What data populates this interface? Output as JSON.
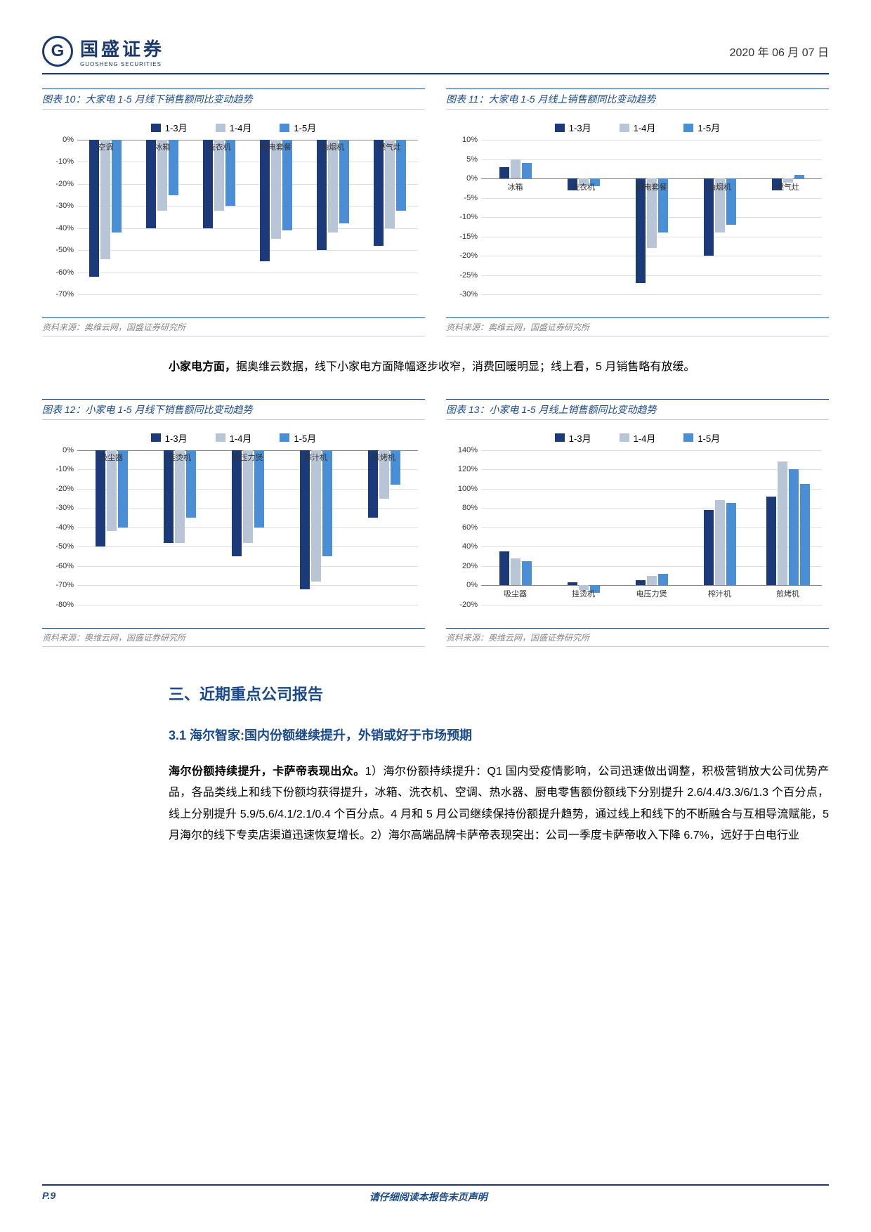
{
  "header": {
    "company_cn": "国盛证券",
    "company_en": "GUOSHENG SECURITIES",
    "date": "2020 年 06 月 07 日"
  },
  "colors": {
    "c1": "#1a3a7a",
    "c2": "#b8c5d6",
    "c3": "#4a8fd6",
    "border": "#1a4a8a",
    "grid": "#dddddd"
  },
  "legend_labels": [
    "1-3月",
    "1-4月",
    "1-5月"
  ],
  "chart10": {
    "title": "图表 10：大家电 1-5 月线下销售额同比变动趋势",
    "source": "资料来源：奥维云网，国盛证券研究所",
    "ymin": -70,
    "ymax": 0,
    "ystep": 10,
    "categories": [
      "空调",
      "冰箱",
      "洗衣机",
      "厨电套餐",
      "油烟机",
      "燃气灶"
    ],
    "series": [
      [
        -62,
        -40,
        -40,
        -55,
        -50,
        -48
      ],
      [
        -54,
        -32,
        -32,
        -45,
        -42,
        -40
      ],
      [
        -42,
        -25,
        -30,
        -41,
        -38,
        -32
      ]
    ]
  },
  "chart11": {
    "title": "图表 11：大家电 1-5 月线上销售额同比变动趋势",
    "source": "资料来源：奥维云网，国盛证券研究所",
    "ymin": -30,
    "ymax": 10,
    "ystep": 5,
    "categories": [
      "冰箱",
      "洗衣机",
      "厨电套餐",
      "油烟机",
      "燃气灶"
    ],
    "series": [
      [
        3,
        -3,
        -27,
        -20,
        -3
      ],
      [
        5,
        -2,
        -18,
        -14,
        -1
      ],
      [
        4,
        -2,
        -14,
        -12,
        1
      ]
    ]
  },
  "chart12": {
    "title": "图表 12：小家电 1-5 月线下销售额同比变动趋势",
    "source": "资料来源：奥维云网，国盛证券研究所",
    "ymin": -80,
    "ymax": 0,
    "ystep": 10,
    "categories": [
      "吸尘器",
      "挂烫机",
      "电压力煲",
      "榨汁机",
      "煎烤机"
    ],
    "series": [
      [
        -50,
        -48,
        -55,
        -72,
        -35
      ],
      [
        -42,
        -48,
        -48,
        -68,
        -25
      ],
      [
        -40,
        -35,
        -40,
        -55,
        -18
      ]
    ]
  },
  "chart13": {
    "title": "图表 13：小家电 1-5 月线上销售额同比变动趋势",
    "source": "资料来源：奥维云网，国盛证券研究所",
    "ymin": -20,
    "ymax": 140,
    "ystep": 20,
    "categories": [
      "吸尘器",
      "挂烫机",
      "电压力煲",
      "榨汁机",
      "煎烤机"
    ],
    "series": [
      [
        35,
        3,
        5,
        78,
        92
      ],
      [
        28,
        -5,
        10,
        88,
        128
      ],
      [
        25,
        -8,
        12,
        85,
        120
      ]
    ],
    "extra_series": [
      null,
      null,
      null,
      null,
      105
    ]
  },
  "text1": "据奥维云数据，线下小家电方面降幅逐步收窄，消费回暖明显；线上看，5 月销售略有放缓。",
  "text1_bold": "小家电方面，",
  "h1": "三、近期重点公司报告",
  "h2": "3.1 海尔智家:国内份额继续提升，外销或好于市场预期",
  "para_bold": "海尔份额持续提升，卡萨帝表现出众。",
  "para": "1）海尔份额持续提升：Q1 国内受疫情影响，公司迅速做出调整，积极营销放大公司优势产品，各品类线上和线下份额均获得提升，冰箱、洗衣机、空调、热水器、厨电零售额份额线下分别提升 2.6/4.4/3.3/6/1.3 个百分点，线上分别提升 5.9/5.6/4.1/2.1/0.4 个百分点。4 月和 5 月公司继续保持份额提升趋势，通过线上和线下的不断融合与互相导流赋能，5 月海尔的线下专卖店渠道迅速恢复增长。2）海尔高端品牌卡萨帝表现突出：公司一季度卡萨帝收入下降 6.7%，远好于白电行业",
  "footer": {
    "page": "P.9",
    "note": "请仔细阅读本报告末页声明"
  }
}
